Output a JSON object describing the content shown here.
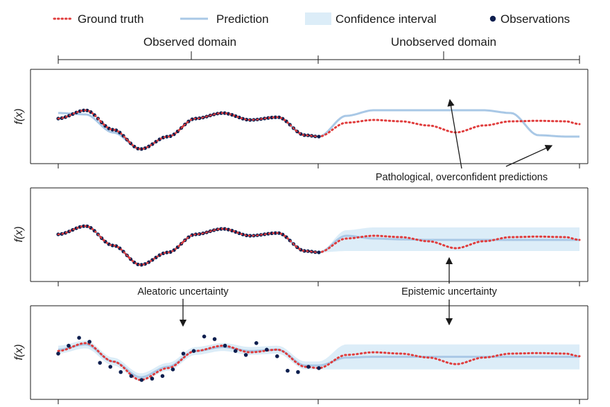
{
  "legend": {
    "ground_truth": "Ground truth",
    "prediction": "Prediction",
    "confidence_interval": "Confidence interval",
    "observations": "Observations"
  },
  "domains": {
    "observed": "Observed domain",
    "unobserved": "Unobserved domain"
  },
  "annotations": {
    "pathological": "Pathological, overconfident predictions",
    "aleatoric": "Aleatoric uncertainty",
    "epistemic": "Epistemic uncertainty"
  },
  "colors": {
    "ground_truth": "#e03c3c",
    "prediction": "#a9c8e6",
    "confidence_interval": "#dcedf8",
    "observations": "#0e1f4f",
    "axis": "#1a1a1a"
  },
  "chart_data": [
    {
      "type": "line",
      "panel": "top",
      "ylabel": "f(x)",
      "xlim": [
        0,
        1
      ],
      "observed_domain": [
        0,
        0.5
      ],
      "ground_truth_x": [
        0,
        0.0526,
        0.1053,
        0.1579,
        0.2105,
        0.2632,
        0.3158,
        0.3684,
        0.4211,
        0.4737,
        0.5,
        0.5526,
        0.6053,
        0.6579,
        0.7105,
        0.7632,
        0.8158,
        0.8684,
        0.9211,
        0.9737,
        1.0
      ],
      "ground_truth": [
        0.1,
        0.4,
        -0.3,
        -1.0,
        -0.55,
        0.1,
        0.3,
        0.05,
        0.15,
        -0.5,
        -0.55,
        -0.05,
        0.05,
        0.0,
        -0.15,
        -0.4,
        -0.15,
        0.0,
        0.02,
        0.0,
        -0.1
      ],
      "prediction_x": [
        0,
        0.0526,
        0.1053,
        0.1579,
        0.2105,
        0.2632,
        0.3158,
        0.3684,
        0.4211,
        0.4737,
        0.5,
        0.5526,
        0.6053,
        0.6579,
        0.7105,
        0.7632,
        0.8158,
        0.8684,
        0.9211,
        0.9737,
        1.0
      ],
      "prediction": [
        0.3,
        0.25,
        -0.4,
        -1.0,
        -0.55,
        0.1,
        0.3,
        0.05,
        0.15,
        -0.5,
        -0.55,
        0.2,
        0.4,
        0.4,
        0.4,
        0.4,
        0.4,
        0.3,
        -0.5,
        -0.55,
        -0.55
      ],
      "observations_x": [
        0,
        0.0526,
        0.1053,
        0.1579,
        0.2105,
        0.2632,
        0.3158,
        0.3684,
        0.4211,
        0.4737,
        0.5
      ],
      "observations": [
        0.1,
        0.4,
        -0.3,
        -1.0,
        -0.55,
        0.1,
        0.3,
        0.05,
        0.15,
        -0.5,
        -0.55
      ]
    },
    {
      "type": "line",
      "panel": "middle",
      "ylabel": "f(x)",
      "xlim": [
        0,
        1
      ],
      "ground_truth_x": [
        0,
        0.0526,
        0.1053,
        0.1579,
        0.2105,
        0.2632,
        0.3158,
        0.3684,
        0.4211,
        0.4737,
        0.5,
        0.5526,
        0.6053,
        0.6579,
        0.7105,
        0.7632,
        0.8158,
        0.8684,
        0.9211,
        0.9737,
        1.0
      ],
      "ground_truth": [
        0.1,
        0.4,
        -0.3,
        -1.0,
        -0.55,
        0.1,
        0.3,
        0.05,
        0.15,
        -0.5,
        -0.55,
        -0.05,
        0.05,
        0.0,
        -0.15,
        -0.4,
        -0.15,
        0.0,
        0.02,
        0.0,
        -0.1
      ],
      "prediction_x": [
        0,
        0.0526,
        0.1053,
        0.1579,
        0.2105,
        0.2632,
        0.3158,
        0.3684,
        0.4211,
        0.4737,
        0.5,
        0.5526,
        0.6053,
        0.6579,
        0.7105,
        0.7632,
        0.8158,
        0.8684,
        0.9211,
        0.9737,
        1.0
      ],
      "prediction": [
        0.1,
        0.4,
        -0.3,
        -1.0,
        -0.55,
        0.1,
        0.3,
        0.05,
        0.15,
        -0.5,
        -0.55,
        0.05,
        -0.05,
        -0.08,
        -0.1,
        -0.1,
        -0.1,
        -0.1,
        -0.1,
        -0.1,
        -0.1
      ],
      "ci_x": [
        0.5,
        0.5526,
        0.6053,
        0.6579,
        0.7105,
        0.7632,
        0.8158,
        0.8684,
        0.9211,
        0.9737,
        1.0
      ],
      "ci_lower": [
        -0.55,
        -0.5,
        -0.5,
        -0.5,
        -0.5,
        -0.5,
        -0.5,
        -0.5,
        -0.5,
        -0.5,
        -0.5
      ],
      "ci_upper": [
        -0.55,
        0.25,
        0.35,
        0.35,
        0.35,
        0.35,
        0.35,
        0.35,
        0.35,
        0.35,
        0.35
      ],
      "observations_x": [
        0,
        0.0526,
        0.1053,
        0.1579,
        0.2105,
        0.2632,
        0.3158,
        0.3684,
        0.4211,
        0.4737,
        0.5
      ],
      "observations": [
        0.1,
        0.4,
        -0.3,
        -1.0,
        -0.55,
        0.1,
        0.3,
        0.05,
        0.15,
        -0.5,
        -0.55
      ]
    },
    {
      "type": "line",
      "panel": "bottom",
      "ylabel": "f(x)",
      "xlim": [
        0,
        1
      ],
      "ground_truth_x": [
        0,
        0.0526,
        0.1053,
        0.1579,
        0.2105,
        0.2632,
        0.3158,
        0.3684,
        0.4211,
        0.4737,
        0.5,
        0.5526,
        0.6053,
        0.6579,
        0.7105,
        0.7632,
        0.8158,
        0.8684,
        0.9211,
        0.9737,
        1.0
      ],
      "ground_truth": [
        0.1,
        0.4,
        -0.3,
        -1.0,
        -0.55,
        0.1,
        0.3,
        0.05,
        0.15,
        -0.5,
        -0.55,
        -0.05,
        0.05,
        0.0,
        -0.15,
        -0.4,
        -0.15,
        0.0,
        0.02,
        0.0,
        -0.1
      ],
      "prediction_x": [
        0,
        0.0526,
        0.1053,
        0.1579,
        0.2105,
        0.2632,
        0.3158,
        0.3684,
        0.4211,
        0.4737,
        0.5,
        0.5526,
        0.6053,
        0.6579,
        0.7105,
        0.7632,
        0.8158,
        0.8684,
        0.9211,
        0.9737,
        1.0
      ],
      "prediction": [
        0.15,
        0.35,
        -0.3,
        -0.9,
        -0.5,
        0.1,
        0.25,
        0.1,
        0.15,
        -0.45,
        -0.45,
        -0.15,
        -0.12,
        -0.12,
        -0.12,
        -0.12,
        -0.12,
        -0.12,
        -0.12,
        -0.12,
        -0.12
      ],
      "ci_x": [
        0,
        0.0526,
        0.1053,
        0.1579,
        0.2105,
        0.2632,
        0.3158,
        0.3684,
        0.4211,
        0.4737,
        0.5,
        0.5526,
        0.6053,
        0.6579,
        0.7105,
        0.7632,
        0.8158,
        0.8684,
        0.9211,
        0.9737,
        1.0
      ],
      "ci_lower": [
        0.0,
        0.2,
        -0.45,
        -1.05,
        -0.65,
        -0.05,
        0.1,
        -0.05,
        0.0,
        -0.6,
        -0.6,
        -0.6,
        -0.6,
        -0.6,
        -0.6,
        -0.6,
        -0.6,
        -0.6,
        -0.6,
        -0.6,
        -0.6
      ],
      "ci_upper": [
        0.3,
        0.5,
        -0.15,
        -0.75,
        -0.35,
        0.25,
        0.4,
        0.25,
        0.3,
        -0.3,
        -0.3,
        0.35,
        0.35,
        0.35,
        0.35,
        0.35,
        0.35,
        0.35,
        0.35,
        0.35,
        0.35
      ],
      "observations_x": [
        0.0,
        0.02,
        0.04,
        0.06,
        0.08,
        0.1,
        0.12,
        0.14,
        0.16,
        0.18,
        0.2,
        0.22,
        0.24,
        0.26,
        0.28,
        0.3,
        0.32,
        0.34,
        0.36,
        0.38,
        0.4,
        0.42,
        0.44,
        0.46,
        0.48,
        0.5
      ],
      "observations": [
        0.0,
        0.3,
        0.6,
        0.45,
        -0.35,
        -0.5,
        -0.7,
        -0.85,
        -1.0,
        -0.95,
        -0.85,
        -0.6,
        0.0,
        0.1,
        0.65,
        0.55,
        0.3,
        0.1,
        -0.05,
        0.4,
        0.15,
        -0.1,
        -0.65,
        -0.7,
        -0.5,
        -0.55
      ]
    }
  ]
}
